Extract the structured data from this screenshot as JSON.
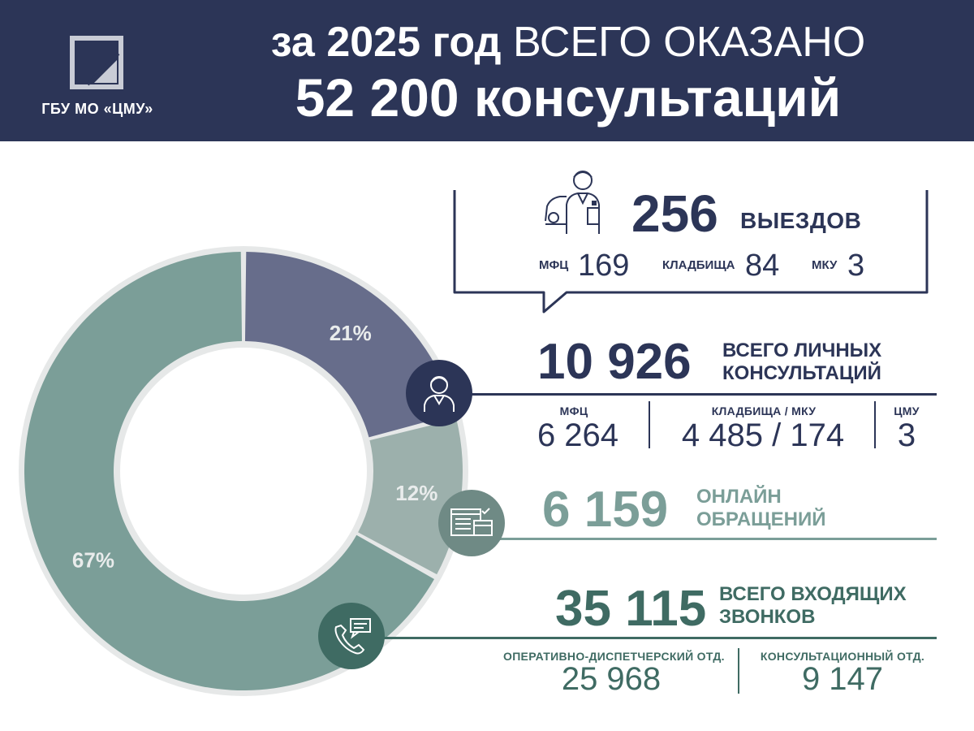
{
  "header": {
    "logo_text": "ГБУ МО «ЦМУ»",
    "title_prefix": "за",
    "title_year": "2025 год",
    "title_rest": "ВСЕГО ОКАЗАНО",
    "title_line2": "52 200 консультаций"
  },
  "colors": {
    "navy": "#2c3557",
    "teal": "#4a7a72",
    "teal_light": "#7b9e98",
    "grey_green": "#9cb0ac",
    "slate": "#676d8b",
    "ring_bg": "#e6e8e8"
  },
  "chart_data": {
    "type": "pie",
    "slices": [
      {
        "label": "21%",
        "value": 21,
        "color": "#676d8b"
      },
      {
        "label": "12%",
        "value": 12,
        "color": "#9cb0ac"
      },
      {
        "label": "67%",
        "value": 67,
        "color": "#7b9e98"
      }
    ]
  },
  "trips": {
    "value": "256",
    "caption": "ВЫЕЗДОВ",
    "icon": "worker-car-icon",
    "items": [
      {
        "label": "МФЦ",
        "value": "169"
      },
      {
        "label": "КЛАДБИЩА",
        "value": "84"
      },
      {
        "label": "МКУ",
        "value": "3"
      }
    ]
  },
  "personal": {
    "value": "10 926",
    "caption_line1": "ВСЕГО ЛИЧНЫХ",
    "caption_line2": "КОНСУЛЬТАЦИЙ",
    "icon": "person-icon",
    "items": [
      {
        "label": "МФЦ",
        "value": "6 264"
      },
      {
        "label": "КЛАДБИЩА / МКУ",
        "value": "4 485 / 174"
      },
      {
        "label": "ЦМУ",
        "value": "3"
      }
    ]
  },
  "online": {
    "value": "6 159",
    "caption_line1": "ОНЛАЙН",
    "caption_line2": "ОБРАЩЕНИЙ",
    "icon": "web-form-icon"
  },
  "calls": {
    "value": "35 115",
    "caption_line1": "ВСЕГО ВХОДЯЩИХ",
    "caption_line2": "ЗВОНКОВ",
    "icon": "phone-chat-icon",
    "items": [
      {
        "label": "ОПЕРАТИВНО-ДИСПЕТЧЕРСКИЙ ОТД.",
        "value": "25 968"
      },
      {
        "label": "КОНСУЛЬТАЦИОННЫЙ ОТД.",
        "value": "9 147"
      }
    ]
  }
}
